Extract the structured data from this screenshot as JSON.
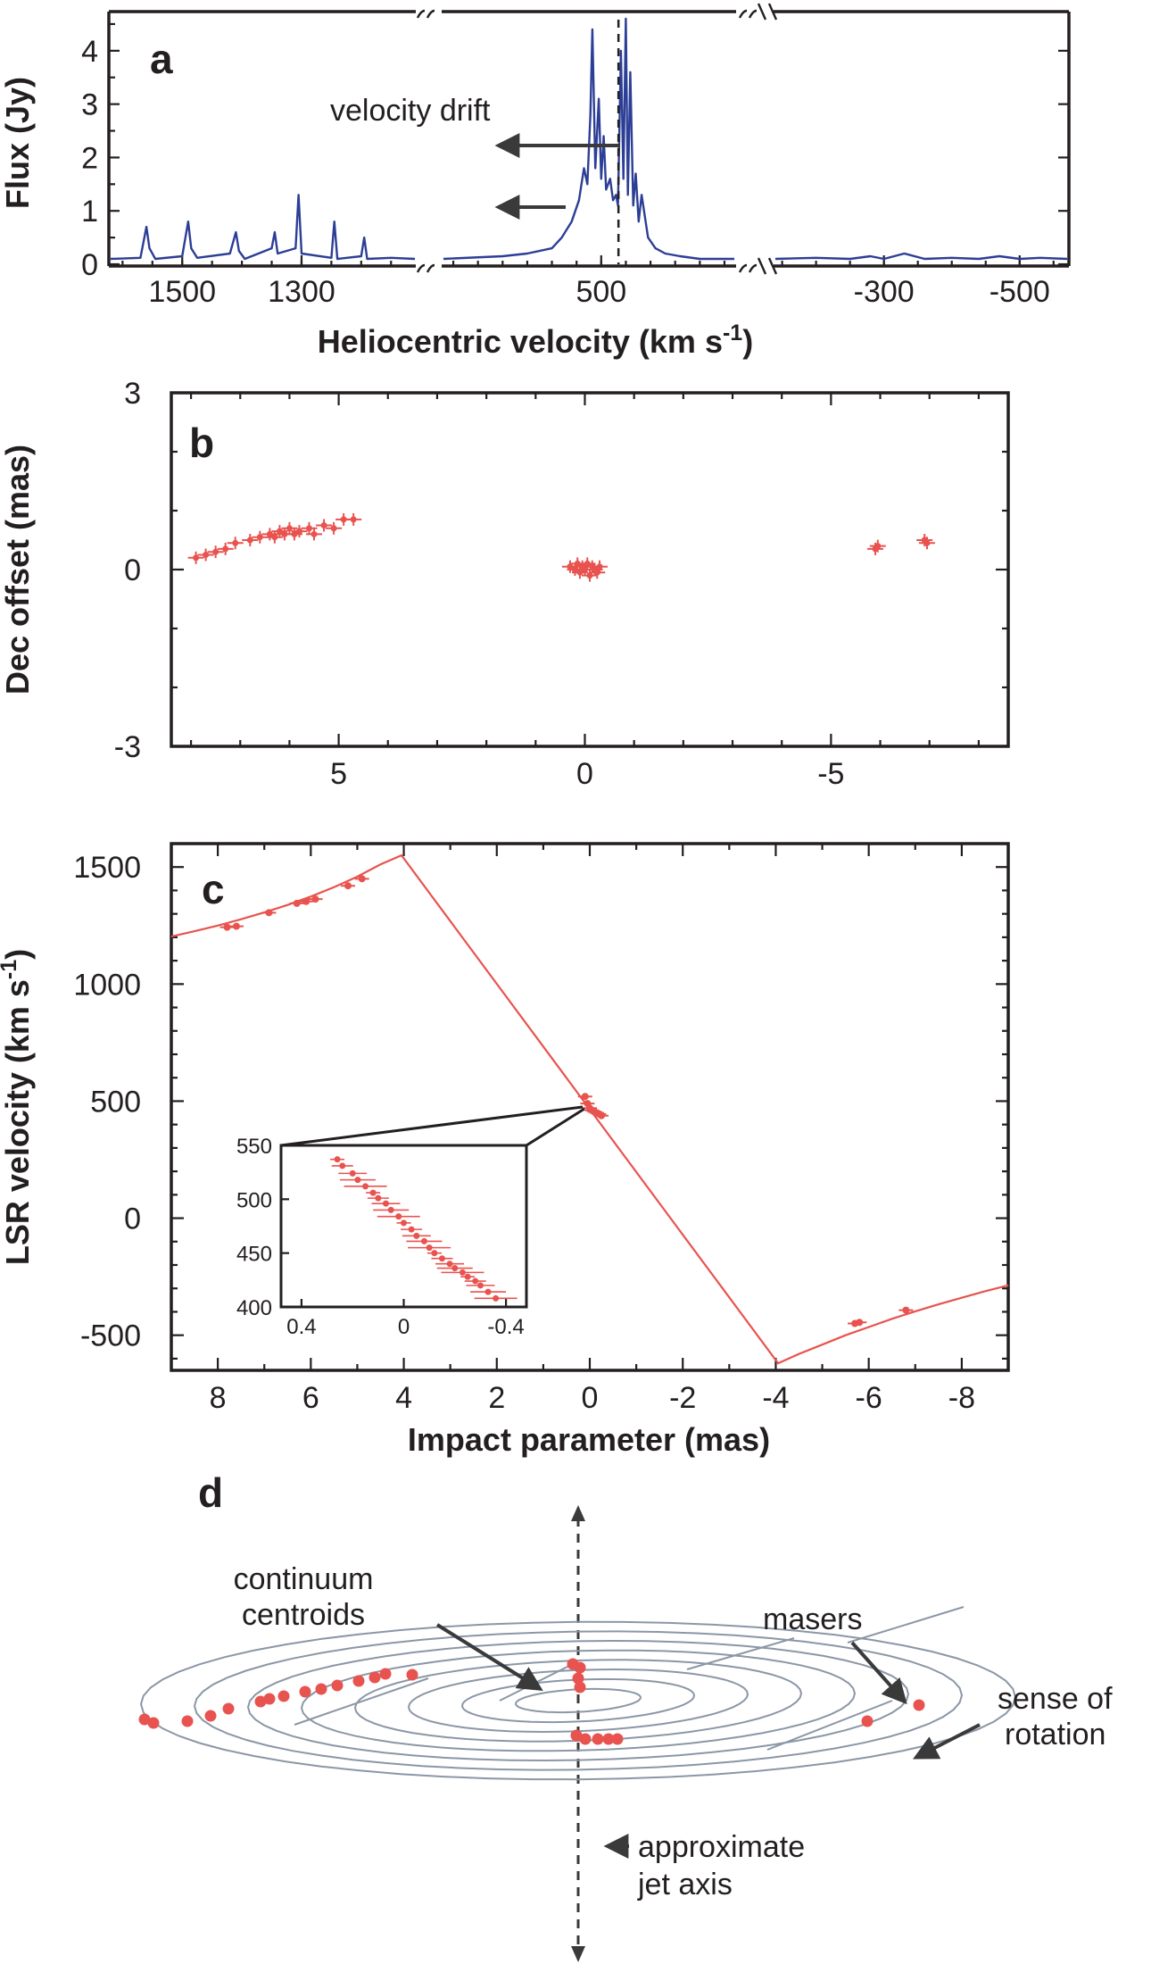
{
  "chart_data": [
    {
      "panel": "a",
      "type": "line",
      "xlabel": "Heliocentric velocity (km s",
      "xlabel_sup": "-1",
      "ylabel": "Flux (Jy)",
      "broken_x_axis": true,
      "x_segments": [
        [
          1620,
          1110
        ],
        [
          820,
          230
        ],
        [
          -140,
          -570
        ]
      ],
      "ylim": [
        0,
        4.7
      ],
      "xticks": [
        "1500",
        "1300",
        "500",
        "-300",
        "-500"
      ],
      "xtick_values": [
        1500,
        1300,
        500,
        -300,
        -500
      ],
      "yticks": [
        "0",
        "1",
        "2",
        "3",
        "4"
      ],
      "annotation": "velocity drift",
      "dashed_line_x": 465,
      "series": [
        {
          "segment": 0,
          "x": [
            1620,
            1570,
            1560,
            1555,
            1545,
            1500,
            1490,
            1485,
            1475,
            1420,
            1410,
            1405,
            1395,
            1350,
            1345,
            1340,
            1310,
            1305,
            1300,
            1250,
            1245,
            1240,
            1200,
            1195,
            1190,
            1150,
            1110
          ],
          "y": [
            0.1,
            0.12,
            0.7,
            0.3,
            0.1,
            0.15,
            0.8,
            0.3,
            0.12,
            0.2,
            0.6,
            0.25,
            0.1,
            0.3,
            0.6,
            0.2,
            0.3,
            1.3,
            0.2,
            0.12,
            0.8,
            0.1,
            0.15,
            0.5,
            0.1,
            0.12,
            0.1
          ]
        },
        {
          "segment": 1,
          "x": [
            820,
            700,
            650,
            600,
            580,
            560,
            545,
            535,
            528,
            522,
            518,
            512,
            505,
            500,
            495,
            490,
            482,
            476,
            470,
            466,
            460,
            455,
            450,
            446,
            441,
            435,
            430,
            424,
            418,
            405,
            390,
            370,
            340,
            300,
            230
          ],
          "y": [
            0.1,
            0.15,
            0.2,
            0.3,
            0.5,
            0.8,
            1.2,
            1.8,
            1.5,
            2.8,
            4.4,
            1.8,
            3.1,
            1.6,
            2.4,
            1.4,
            1.6,
            1.2,
            1.3,
            1.1,
            4.0,
            1.6,
            4.6,
            1.3,
            3.6,
            1.1,
            1.7,
            0.8,
            1.3,
            0.5,
            0.3,
            0.2,
            0.15,
            0.1,
            0.1
          ]
        },
        {
          "segment": 2,
          "x": [
            -140,
            -200,
            -250,
            -280,
            -300,
            -330,
            -360,
            -400,
            -440,
            -470,
            -500,
            -530,
            -570
          ],
          "y": [
            0.1,
            0.12,
            0.1,
            0.15,
            0.1,
            0.2,
            0.1,
            0.12,
            0.1,
            0.15,
            0.1,
            0.12,
            0.1
          ]
        }
      ]
    },
    {
      "panel": "b",
      "type": "scatter",
      "ylabel": "Dec offset (mas)",
      "xlim": [
        8.4,
        -8.6
      ],
      "ylim": [
        -3,
        3
      ],
      "xticks": [
        "5",
        "0",
        "-5"
      ],
      "xtick_values": [
        5,
        0,
        -5
      ],
      "yticks": [
        "-3",
        "0",
        "3"
      ],
      "ytick_values": [
        -3,
        0,
        3
      ],
      "series": [
        {
          "name": "",
          "x": [
            7.9,
            7.7,
            7.5,
            7.3,
            7.1,
            6.8,
            6.6,
            6.4,
            6.3,
            6.2,
            6.1,
            6.0,
            5.9,
            5.8,
            5.6,
            5.5,
            5.3,
            5.1,
            4.9,
            4.7,
            0.3,
            0.2,
            0.15,
            0.1,
            0.05,
            0.0,
            -0.05,
            -0.1,
            -0.15,
            -0.2,
            -0.25,
            -0.3,
            -5.9,
            -5.95,
            -6.9,
            -6.95
          ],
          "y": [
            0.2,
            0.25,
            0.3,
            0.35,
            0.45,
            0.5,
            0.55,
            0.6,
            0.55,
            0.65,
            0.6,
            0.7,
            0.6,
            0.65,
            0.7,
            0.6,
            0.75,
            0.7,
            0.85,
            0.85,
            0.05,
            0.0,
            0.1,
            -0.05,
            0.05,
            0.0,
            0.1,
            -0.1,
            0.05,
            0.0,
            -0.05,
            0.05,
            0.35,
            0.4,
            0.5,
            0.45
          ]
        }
      ]
    },
    {
      "panel": "c",
      "type": "scatter",
      "xlabel": "Impact parameter (mas)",
      "ylabel": "LSR velocity (km s",
      "ylabel_sup": "-1",
      "xlim": [
        9,
        -9
      ],
      "ylim": [
        -650,
        1600
      ],
      "xticks": [
        "8",
        "6",
        "4",
        "2",
        "0",
        "-2",
        "-4",
        "-6",
        "-8"
      ],
      "xtick_values": [
        8,
        6,
        4,
        2,
        0,
        -2,
        -4,
        -6,
        -8
      ],
      "yticks": [
        "-500",
        "0",
        "500",
        "1000",
        "1500"
      ],
      "ytick_values": [
        -500,
        0,
        500,
        1000,
        1500
      ],
      "model_curve": {
        "x": [
          9,
          8.5,
          8,
          7.5,
          7,
          6.5,
          6,
          5.5,
          5,
          4.5,
          4.05,
          0,
          -4.05,
          -4.5,
          -5,
          -5.5,
          -6,
          -6.5,
          -7,
          -7.5,
          -8,
          -8.5,
          -9
        ],
        "y": [
          1203,
          1226,
          1250,
          1277,
          1306,
          1338,
          1374,
          1414,
          1459,
          1511,
          1550,
          465,
          -620,
          -580,
          -540,
          -500,
          -465,
          -430,
          -398,
          -368,
          -340,
          -312,
          -287
        ]
      },
      "series": [
        {
          "name": "",
          "x": [
            7.8,
            7.6,
            6.9,
            6.3,
            6.1,
            5.9,
            5.2,
            4.9,
            0.1,
            0.05,
            0.0,
            -0.05,
            -0.1,
            -0.15,
            -0.2,
            -0.25,
            -5.7,
            -5.8,
            -6.8
          ],
          "y": [
            1243,
            1247,
            1305,
            1345,
            1353,
            1363,
            1420,
            1450,
            520,
            490,
            470,
            460,
            455,
            450,
            445,
            438,
            -450,
            -445,
            -393
          ]
        }
      ],
      "inset": {
        "xlim": [
          0.48,
          -0.48
        ],
        "ylim": [
          400,
          550
        ],
        "xticks": [
          "0.4",
          "0",
          "-0.4"
        ],
        "xtick_values": [
          0.4,
          0,
          -0.4
        ],
        "yticks": [
          "400",
          "450",
          "500",
          "550"
        ],
        "ytick_values": [
          400,
          450,
          500,
          550
        ],
        "x": [
          0.26,
          0.24,
          0.2,
          0.18,
          0.15,
          0.12,
          0.1,
          0.07,
          0.05,
          0.02,
          0.0,
          -0.03,
          -0.05,
          -0.08,
          -0.1,
          -0.12,
          -0.15,
          -0.18,
          -0.2,
          -0.23,
          -0.25,
          -0.28,
          -0.3,
          -0.33,
          -0.36
        ],
        "y": [
          537,
          531,
          524,
          518,
          512,
          506,
          501,
          496,
          490,
          484,
          478,
          472,
          466,
          461,
          455,
          450,
          445,
          440,
          436,
          432,
          428,
          424,
          420,
          414,
          408
        ]
      }
    },
    {
      "panel": "d",
      "type": "diagram",
      "labels": {
        "continuum_line1": "continuum",
        "continuum_line2": "centroids",
        "masers": "masers",
        "rotation_line1": "sense of",
        "rotation_line2": "rotation",
        "jet_line1": "approximate",
        "jet_line2": "jet axis"
      }
    }
  ],
  "panel_labels": {
    "a": "a",
    "b": "b",
    "c": "c",
    "d": "d"
  },
  "colors": {
    "spectrum": "#2c3e96",
    "data": "#e8534f",
    "disk": "#8b97a6",
    "axes": "#231f20"
  }
}
